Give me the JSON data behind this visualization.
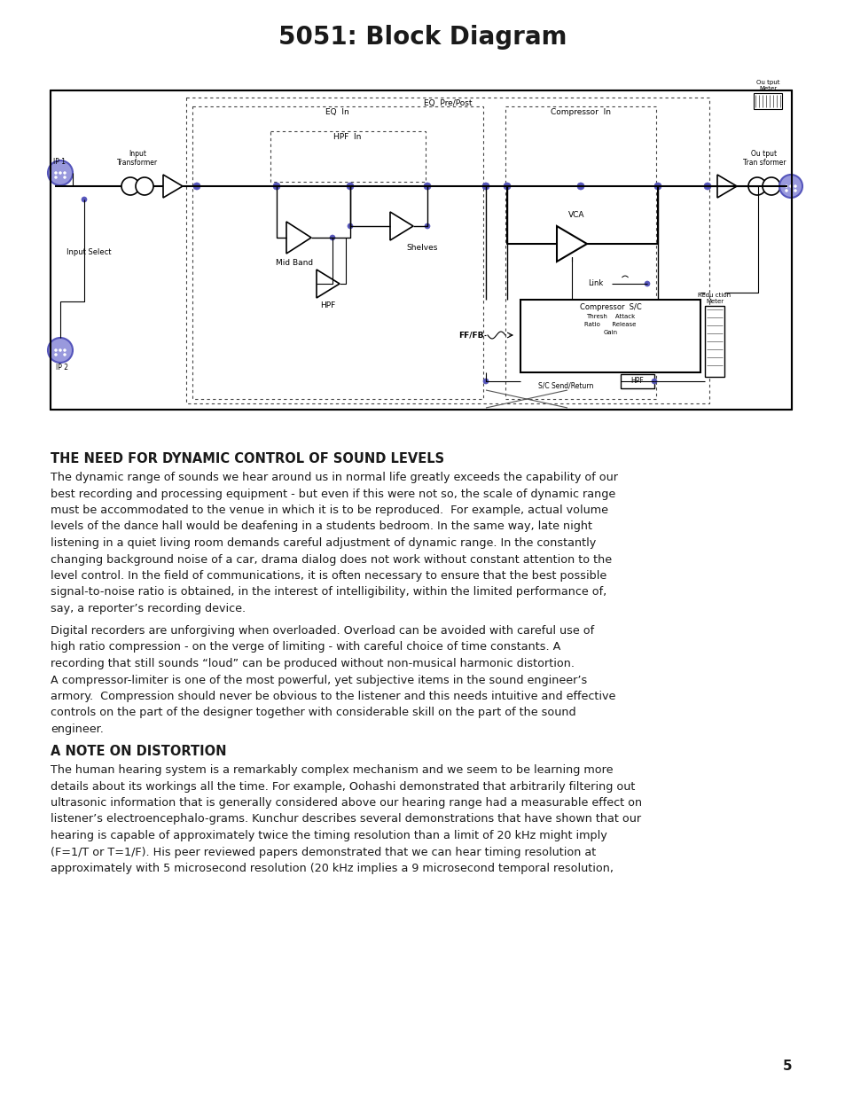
{
  "title": "5051: Block Diagram",
  "title_fontsize": 20,
  "title_fontweight": "bold",
  "title_color": "#1a1a1a",
  "bg_color": "#ffffff",
  "text_color": "#1a1a1a",
  "section_heading": "THE NEED FOR DYNAMIC CONTROL OF SOUND LEVELS",
  "section_heading_fontsize": 10.5,
  "body_fontsize": 9.2,
  "paragraph1": "The dynamic range of sounds we hear around us in normal life greatly exceeds the capability of our\nbest recording and processing equipment - but even if this were not so, the scale of dynamic range\nmust be accommodated to the venue in which it is to be reproduced.  For example, actual volume\nlevels of the dance hall would be deafening in a students bedroom. In the same way, late night\nlistening in a quiet living room demands careful adjustment of dynamic range. In the constantly\nchanging background noise of a car, drama dialog does not work without constant attention to the\nlevel control. In the field of communications, it is often necessary to ensure that the best possible\nsignal-to-noise ratio is obtained, in the interest of intelligibility, within the limited performance of,\nsay, a reporter’s recording device.",
  "paragraph2": "Digital recorders are unforgiving when overloaded. Overload can be avoided with careful use of\nhigh ratio compression - on the verge of limiting - with careful choice of time constants. A\nrecording that still sounds “loud” can be produced without non-musical harmonic distortion.\nA compressor-limiter is one of the most powerful, yet subjective items in the sound engineer’s\narmory.  Compression should never be obvious to the listener and this needs intuitive and effective\ncontrols on the part of the designer together with considerable skill on the part of the sound\nengineer.",
  "section_heading2": "A NOTE ON DISTORTION",
  "section_heading2_fontsize": 10.5,
  "paragraph3": "The human hearing system is a remarkably complex mechanism and we seem to be learning more\ndetails about its workings all the time. For example, Oohashi demonstrated that arbitrarily filtering out\nultrasonic information that is generally considered above our hearing range had a measurable effect on\nlistener’s electroencephalo-grams. Kunchur describes several demonstrations that have shown that our\nhearing is capable of approximately twice the timing resolution than a limit of 20 kHz might imply\n(F=1/T or T=1/F). His peer reviewed papers demonstrated that we can hear timing resolution at\napproximately with 5 microsecond resolution (20 kHz implies a 9 microsecond temporal resolution,",
  "page_number": "5",
  "blue_color": "#5555bb",
  "blue_fill": "#8888cc",
  "black": "#000000",
  "gray": "#888888"
}
